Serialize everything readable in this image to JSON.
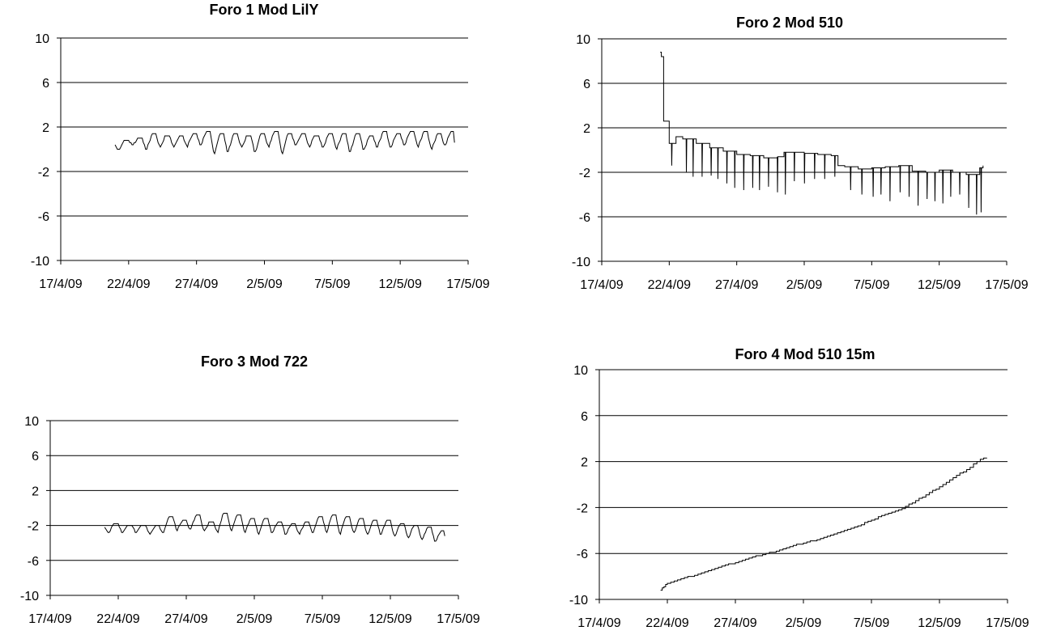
{
  "chart_data": [
    {
      "type": "line",
      "title": "Foro 1 Mod LilY",
      "xlabel": "",
      "ylabel": "",
      "x_ticks": [
        "17/4/09",
        "22/4/09",
        "27/4/09",
        "2/5/09",
        "7/5/09",
        "12/5/09",
        "17/5/09"
      ],
      "y_ticks": [
        10,
        6,
        2,
        -2,
        -6,
        -10
      ],
      "xlim": [
        "2009-04-17",
        "2009-05-17"
      ],
      "ylim": [
        -10,
        10
      ],
      "grid": "horizontal",
      "pattern": "daily oscillation",
      "series": [
        {
          "start": "2009-04-21",
          "end": "2009-05-15",
          "daily_low": [
            -0.1,
            0.3,
            -0.1,
            0.1,
            0.2,
            0.2,
            0.3,
            -0.5,
            -0.4,
            0.1,
            -0.4,
            0.1,
            -0.5,
            0.3,
            0.2,
            0.0,
            -0.1,
            -0.4,
            -0.2,
            0.1,
            0.0,
            0.3,
            0.1,
            -0.1,
            0.2
          ],
          "daily_high": [
            0.8,
            1.0,
            1.3,
            1.2,
            1.1,
            1.3,
            1.5,
            1.3,
            1.4,
            1.2,
            1.3,
            1.6,
            1.4,
            1.3,
            1.2,
            1.3,
            1.3,
            1.4,
            1.2,
            1.5,
            1.4,
            1.5,
            1.5,
            1.3,
            1.6
          ],
          "end_value": 0.6
        }
      ]
    },
    {
      "type": "line",
      "title": "Foro 2 Mod 510",
      "xlabel": "",
      "ylabel": "",
      "x_ticks": [
        "17/4/09",
        "22/4/09",
        "27/4/09",
        "2/5/09",
        "7/5/09",
        "12/5/09",
        "17/5/09"
      ],
      "y_ticks": [
        10,
        6,
        2,
        -2,
        -6,
        -10
      ],
      "xlim": [
        "2009-04-17",
        "2009-05-17"
      ],
      "ylim": [
        -10,
        10
      ],
      "grid": "horizontal",
      "pattern": "stepped baseline with downward spikes",
      "series": [
        {
          "points": [
            [
              "2009-04-21 08:00",
              8.8
            ],
            [
              "2009-04-21 10:00",
              8.4
            ],
            [
              "2009-04-21 14:00",
              2.6
            ],
            [
              "2009-04-22 00:00",
              0.6
            ],
            [
              "2009-04-22 12:00",
              1.2
            ],
            [
              "2009-04-23 00:00",
              1.0
            ],
            [
              "2009-04-24 00:00",
              0.6
            ],
            [
              "2009-04-25 00:00",
              0.2
            ],
            [
              "2009-04-26 00:00",
              -0.1
            ],
            [
              "2009-04-27 00:00",
              -0.4
            ],
            [
              "2009-04-28 00:00",
              -0.5
            ],
            [
              "2009-04-29 00:00",
              -0.7
            ],
            [
              "2009-04-30 00:00",
              -0.6
            ],
            [
              "2009-04-30 12:00",
              -0.2
            ],
            [
              "2009-05-01 00:00",
              -0.2
            ],
            [
              "2009-05-02 00:00",
              -0.3
            ],
            [
              "2009-05-03 00:00",
              -0.4
            ],
            [
              "2009-05-04 00:00",
              -0.5
            ],
            [
              "2009-05-04 12:00",
              -1.4
            ],
            [
              "2009-05-05 00:00",
              -1.5
            ],
            [
              "2009-05-06 00:00",
              -1.7
            ],
            [
              "2009-05-07 00:00",
              -1.6
            ],
            [
              "2009-05-08 00:00",
              -1.5
            ],
            [
              "2009-05-09 00:00",
              -1.4
            ],
            [
              "2009-05-10 00:00",
              -1.9
            ],
            [
              "2009-05-11 00:00",
              -2.0
            ],
            [
              "2009-05-12 00:00",
              -1.8
            ],
            [
              "2009-05-13 00:00",
              -2.0
            ],
            [
              "2009-05-14 00:00",
              -2.2
            ],
            [
              "2009-05-15 00:00",
              -1.6
            ],
            [
              "2009-05-15 06:00",
              -1.4
            ]
          ],
          "spikes": [
            [
              "2009-04-22 04:00",
              -1.4
            ],
            [
              "2009-04-23 06:00",
              -2.0
            ],
            [
              "2009-04-23 18:00",
              -2.4
            ],
            [
              "2009-04-24 10:00",
              -2.4
            ],
            [
              "2009-04-25 02:00",
              -2.3
            ],
            [
              "2009-04-25 14:00",
              -2.6
            ],
            [
              "2009-04-26 06:00",
              -3.0
            ],
            [
              "2009-04-26 20:00",
              -3.4
            ],
            [
              "2009-04-27 12:00",
              -3.6
            ],
            [
              "2009-04-28 04:00",
              -3.4
            ],
            [
              "2009-04-28 16:00",
              -3.6
            ],
            [
              "2009-04-29 08:00",
              -3.3
            ],
            [
              "2009-04-30 00:00",
              -3.8
            ],
            [
              "2009-04-30 14:00",
              -4.0
            ],
            [
              "2009-05-01 06:00",
              -2.8
            ],
            [
              "2009-05-02 00:00",
              -3.0
            ],
            [
              "2009-05-02 18:00",
              -2.6
            ],
            [
              "2009-05-03 12:00",
              -2.6
            ],
            [
              "2009-05-04 06:00",
              -2.4
            ],
            [
              "2009-05-05 10:00",
              -3.6
            ],
            [
              "2009-05-06 06:00",
              -4.0
            ],
            [
              "2009-05-07 02:00",
              -4.2
            ],
            [
              "2009-05-07 16:00",
              -4.0
            ],
            [
              "2009-05-08 08:00",
              -4.6
            ],
            [
              "2009-05-09 02:00",
              -3.8
            ],
            [
              "2009-05-09 18:00",
              -4.2
            ],
            [
              "2009-05-10 10:00",
              -5.0
            ],
            [
              "2009-05-11 02:00",
              -4.4
            ],
            [
              "2009-05-11 16:00",
              -4.6
            ],
            [
              "2009-05-12 06:00",
              -4.8
            ],
            [
              "2009-05-12 20:00",
              -4.2
            ],
            [
              "2009-05-13 12:00",
              -4.0
            ],
            [
              "2009-05-14 04:00",
              -5.2
            ],
            [
              "2009-05-14 18:00",
              -5.8
            ],
            [
              "2009-05-15 02:00",
              -5.6
            ]
          ]
        }
      ]
    },
    {
      "type": "line",
      "title": "Foro 3 Mod 722",
      "xlabel": "",
      "ylabel": "",
      "x_ticks": [
        "17/4/09",
        "22/4/09",
        "27/4/09",
        "2/5/09",
        "7/5/09",
        "12/5/09",
        "17/5/09"
      ],
      "y_ticks": [
        10,
        6,
        2,
        -2,
        -6,
        -10
      ],
      "xlim": [
        "2009-04-17",
        "2009-05-17"
      ],
      "ylim": [
        -10,
        10
      ],
      "grid": "horizontal",
      "pattern": "daily oscillation",
      "series": [
        {
          "start": "2009-04-21",
          "end": "2009-05-15",
          "daily_low": [
            -2.8,
            -2.9,
            -2.9,
            -3.0,
            -3.0,
            -2.6,
            -2.6,
            -2.8,
            -2.9,
            -2.8,
            -3.0,
            -3.1,
            -3.0,
            -3.2,
            -3.1,
            -3.0,
            -2.9,
            -3.1,
            -3.0,
            -3.2,
            -3.2,
            -3.4,
            -3.6,
            -3.8,
            -4.0
          ],
          "daily_high": [
            -1.8,
            -2.0,
            -2.0,
            -2.1,
            -1.0,
            -1.5,
            -0.8,
            -1.6,
            -0.7,
            -0.9,
            -1.2,
            -1.3,
            -1.6,
            -1.8,
            -1.7,
            -1.1,
            -0.9,
            -1.0,
            -1.3,
            -1.5,
            -1.4,
            -1.8,
            -2.0,
            -2.3,
            -2.6
          ],
          "end_value": -3.2
        }
      ]
    },
    {
      "type": "line",
      "title": "Foro 4 Mod 510 15m",
      "xlabel": "",
      "ylabel": "",
      "x_ticks": [
        "17/4/09",
        "22/4/09",
        "27/4/09",
        "2/5/09",
        "7/5/09",
        "12/5/09",
        "17/5/09"
      ],
      "y_ticks": [
        10,
        6,
        2,
        -2,
        -6,
        -10
      ],
      "xlim": [
        "2009-04-17",
        "2009-05-17"
      ],
      "ylim": [
        -10,
        10
      ],
      "grid": "horizontal",
      "pattern": "steady rise with small steps",
      "series": [
        {
          "points": [
            [
              "2009-04-21 12:00",
              -9.2
            ],
            [
              "2009-04-22 00:00",
              -8.6
            ],
            [
              "2009-04-23 00:00",
              -8.2
            ],
            [
              "2009-04-24 00:00",
              -7.9
            ],
            [
              "2009-04-25 00:00",
              -7.5
            ],
            [
              "2009-04-26 00:00",
              -7.1
            ],
            [
              "2009-04-27 00:00",
              -6.8
            ],
            [
              "2009-04-28 00:00",
              -6.4
            ],
            [
              "2009-04-29 00:00",
              -6.1
            ],
            [
              "2009-04-30 00:00",
              -5.8
            ],
            [
              "2009-05-01 00:00",
              -5.4
            ],
            [
              "2009-05-02 00:00",
              -5.1
            ],
            [
              "2009-05-03 00:00",
              -4.8
            ],
            [
              "2009-05-04 00:00",
              -4.4
            ],
            [
              "2009-05-05 00:00",
              -4.0
            ],
            [
              "2009-05-06 00:00",
              -3.6
            ],
            [
              "2009-05-07 00:00",
              -3.1
            ],
            [
              "2009-05-08 00:00",
              -2.6
            ],
            [
              "2009-05-09 00:00",
              -2.2
            ],
            [
              "2009-05-10 00:00",
              -1.6
            ],
            [
              "2009-05-11 00:00",
              -0.9
            ],
            [
              "2009-05-12 00:00",
              -0.2
            ],
            [
              "2009-05-13 00:00",
              0.6
            ],
            [
              "2009-05-14 00:00",
              1.3
            ],
            [
              "2009-05-15 00:00",
              2.2
            ],
            [
              "2009-05-15 12:00",
              2.3
            ]
          ]
        }
      ]
    }
  ]
}
